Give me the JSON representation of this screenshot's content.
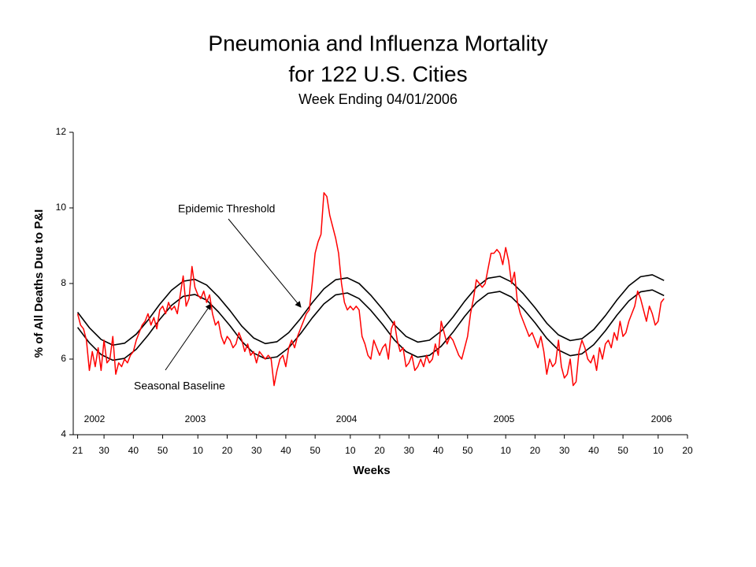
{
  "chart_data": {
    "type": "line",
    "title": "Pneumonia and Influenza Mortality",
    "title_line2": "for 122 U.S. Cities",
    "subtitle": "Week Ending 04/01/2006",
    "ylabel": "% of All Deaths Due to P&I",
    "xlabel": "Weeks",
    "xlim": [
      -1.5,
      208
    ],
    "ylim": [
      4,
      12
    ],
    "yticks": [
      4,
      6,
      8,
      10,
      12
    ],
    "xticks": [
      {
        "value": 0,
        "label": "21"
      },
      {
        "value": 9,
        "label": "30"
      },
      {
        "value": 19,
        "label": "40"
      },
      {
        "value": 29,
        "label": "50"
      },
      {
        "value": 41,
        "label": "10"
      },
      {
        "value": 51,
        "label": "20"
      },
      {
        "value": 61,
        "label": "30"
      },
      {
        "value": 71,
        "label": "40"
      },
      {
        "value": 81,
        "label": "50"
      },
      {
        "value": 93,
        "label": "10"
      },
      {
        "value": 103,
        "label": "20"
      },
      {
        "value": 113,
        "label": "30"
      },
      {
        "value": 123,
        "label": "40"
      },
      {
        "value": 133,
        "label": "50"
      },
      {
        "value": 146,
        "label": "10"
      },
      {
        "value": 156,
        "label": "20"
      },
      {
        "value": 166,
        "label": "30"
      },
      {
        "value": 176,
        "label": "40"
      },
      {
        "value": 186,
        "label": "50"
      },
      {
        "value": 198,
        "label": "10"
      },
      {
        "value": 208,
        "label": "20"
      }
    ],
    "year_labels": [
      "2002",
      "2003",
      "2004",
      "2005",
      "2006"
    ],
    "series": [
      {
        "color": "#ff0000",
        "x": [
          0,
          1,
          2,
          3,
          4,
          5,
          6,
          7,
          8,
          9,
          10,
          11,
          12,
          13,
          14,
          15,
          16,
          17,
          18,
          19,
          20,
          21,
          22,
          23,
          24,
          25,
          26,
          27,
          28,
          29,
          30,
          31,
          32,
          33,
          34,
          35,
          36,
          37,
          38,
          39,
          40,
          41,
          42,
          43,
          44,
          45,
          46,
          47,
          48,
          49,
          50,
          51,
          52,
          53,
          54,
          55,
          56,
          57,
          58,
          59,
          60,
          61,
          62,
          63,
          64,
          65,
          66,
          67,
          68,
          69,
          70,
          71,
          72,
          73,
          74,
          75,
          76,
          77,
          78,
          79,
          80,
          81,
          82,
          83,
          84,
          85,
          86,
          87,
          88,
          89,
          90,
          91,
          92,
          93,
          94,
          95,
          96,
          97,
          98,
          99,
          100,
          101,
          102,
          103,
          104,
          105,
          106,
          107,
          108,
          109,
          110,
          111,
          112,
          113,
          114,
          115,
          116,
          117,
          118,
          119,
          120,
          121,
          122,
          123,
          124,
          125,
          126,
          127,
          128,
          129,
          130,
          131,
          132,
          133,
          134,
          135,
          136,
          137,
          138,
          139,
          140,
          141,
          142,
          143,
          144,
          145,
          146,
          147,
          148,
          149,
          150,
          151,
          152,
          153,
          154,
          155,
          156,
          157,
          158,
          159,
          160,
          161,
          162,
          163,
          164,
          165,
          166,
          167,
          168,
          169,
          170,
          171,
          172,
          173,
          174,
          175,
          176,
          177,
          178,
          179,
          180,
          181,
          182,
          183,
          184,
          185,
          186,
          187,
          188,
          189,
          190,
          191,
          192,
          193,
          194,
          195,
          196,
          197,
          198,
          199,
          200
        ],
        "values": [
          7.2,
          6.9,
          6.8,
          6.5,
          5.7,
          6.2,
          5.8,
          6.3,
          5.7,
          6.5,
          5.9,
          6.0,
          6.6,
          5.6,
          5.9,
          5.8,
          6.0,
          5.9,
          6.1,
          6.2,
          6.5,
          6.7,
          6.9,
          7.0,
          7.2,
          6.9,
          7.1,
          6.8,
          7.3,
          7.4,
          7.2,
          7.5,
          7.3,
          7.4,
          7.2,
          7.7,
          8.2,
          7.4,
          7.6,
          8.45,
          7.9,
          7.7,
          7.6,
          7.8,
          7.5,
          7.7,
          7.2,
          6.9,
          7.0,
          6.6,
          6.4,
          6.6,
          6.5,
          6.3,
          6.4,
          6.7,
          6.5,
          6.2,
          6.4,
          6.1,
          6.2,
          5.9,
          6.2,
          6.1,
          6.0,
          6.1,
          6.0,
          5.3,
          5.7,
          6.0,
          6.1,
          5.8,
          6.3,
          6.5,
          6.3,
          6.6,
          6.8,
          7.0,
          7.2,
          7.3,
          8.0,
          8.8,
          9.1,
          9.3,
          10.4,
          10.3,
          9.8,
          9.5,
          9.2,
          8.8,
          8.0,
          7.5,
          7.3,
          7.4,
          7.3,
          7.4,
          7.3,
          6.6,
          6.4,
          6.1,
          6.0,
          6.5,
          6.3,
          6.1,
          6.3,
          6.4,
          6.0,
          6.8,
          7.0,
          6.5,
          6.2,
          6.3,
          5.8,
          5.9,
          6.1,
          5.7,
          5.8,
          6.0,
          5.8,
          6.1,
          5.9,
          6.0,
          6.4,
          6.1,
          7.0,
          6.7,
          6.4,
          6.6,
          6.5,
          6.3,
          6.1,
          6.0,
          6.3,
          6.6,
          7.2,
          7.6,
          8.1,
          8.0,
          7.9,
          8.0,
          8.4,
          8.8,
          8.8,
          8.9,
          8.8,
          8.5,
          8.95,
          8.6,
          8.0,
          8.3,
          7.5,
          7.2,
          7.0,
          6.8,
          6.6,
          6.7,
          6.5,
          6.3,
          6.6,
          6.2,
          5.6,
          6.0,
          5.8,
          5.9,
          6.5,
          5.8,
          5.5,
          5.6,
          6.0,
          5.3,
          5.4,
          6.2,
          6.5,
          6.3,
          6.0,
          5.9,
          6.1,
          5.7,
          6.3,
          6.0,
          6.4,
          6.5,
          6.3,
          6.7,
          6.5,
          7.0,
          6.6,
          6.7,
          7.0,
          7.2,
          7.4,
          7.8,
          7.6,
          7.3,
          7.0,
          7.4,
          7.2,
          6.9,
          7.0,
          7.5,
          7.6
        ]
      },
      {
        "name": "Seasonal Baseline",
        "color": "#000000",
        "x": [
          0,
          4,
          8,
          12,
          16,
          20,
          24,
          28,
          32,
          36,
          40,
          44,
          48,
          52,
          56,
          60,
          64,
          68,
          72,
          76,
          80,
          84,
          88,
          92,
          96,
          100,
          104,
          108,
          112,
          116,
          120,
          124,
          128,
          132,
          136,
          140,
          144,
          148,
          152,
          156,
          160,
          164,
          168,
          172,
          176,
          180,
          184,
          188,
          192,
          196,
          200
        ],
        "values": [
          6.84,
          6.43,
          6.12,
          5.97,
          6.02,
          6.26,
          6.63,
          7.05,
          7.42,
          7.66,
          7.71,
          7.56,
          7.25,
          6.88,
          6.47,
          6.16,
          6.01,
          6.06,
          6.3,
          6.67,
          7.09,
          7.46,
          7.7,
          7.75,
          7.6,
          7.29,
          6.92,
          6.51,
          6.2,
          6.05,
          6.1,
          6.34,
          6.71,
          7.13,
          7.5,
          7.74,
          7.79,
          7.64,
          7.33,
          6.96,
          6.55,
          6.24,
          6.09,
          6.14,
          6.38,
          6.75,
          7.17,
          7.54,
          7.78,
          7.83,
          7.68
        ]
      },
      {
        "name": "Epidemic Threshold",
        "color": "#000000",
        "x": [
          0,
          4,
          8,
          12,
          16,
          20,
          24,
          28,
          32,
          36,
          40,
          44,
          48,
          52,
          56,
          60,
          64,
          68,
          72,
          76,
          80,
          84,
          88,
          92,
          96,
          100,
          104,
          108,
          112,
          116,
          120,
          124,
          128,
          132,
          136,
          140,
          144,
          148,
          152,
          156,
          160,
          164,
          168,
          172,
          176,
          180,
          184,
          188,
          192,
          196,
          200
        ],
        "values": [
          7.24,
          6.83,
          6.52,
          6.37,
          6.42,
          6.66,
          7.03,
          7.45,
          7.82,
          8.06,
          8.11,
          7.96,
          7.65,
          7.28,
          6.87,
          6.56,
          6.41,
          6.46,
          6.7,
          7.07,
          7.49,
          7.86,
          8.1,
          8.15,
          8.0,
          7.69,
          7.32,
          6.91,
          6.6,
          6.45,
          6.5,
          6.74,
          7.11,
          7.53,
          7.9,
          8.14,
          8.19,
          8.04,
          7.73,
          7.36,
          6.95,
          6.64,
          6.49,
          6.54,
          6.78,
          7.15,
          7.57,
          7.94,
          8.18,
          8.23,
          8.08
        ]
      }
    ]
  }
}
